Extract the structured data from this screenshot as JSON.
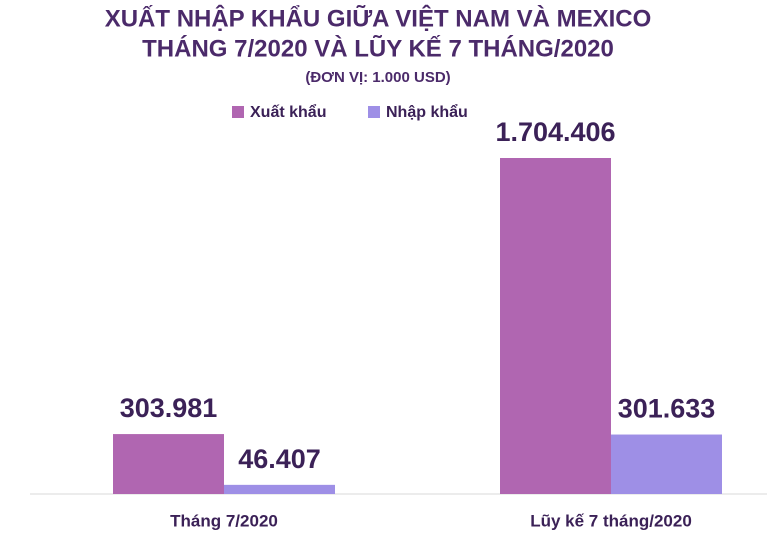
{
  "chart_data": {
    "type": "bar",
    "title": "XUẤT NHẬP KHẨU GIỮA VIỆT NAM VÀ MEXICO",
    "subtitle": "THÁNG 7/2020 VÀ LŨY KẾ 7 THÁNG/2020",
    "unit": "(ĐƠN VỊ: 1.000 USD)",
    "categories": [
      "Tháng 7/2020",
      "Lũy kế 7 tháng/2020"
    ],
    "series": [
      {
        "name": "Xuất khẩu",
        "color": "#b066b1",
        "values": [
          303981,
          1704406
        ],
        "value_labels": [
          "303.981",
          "1.704.406"
        ]
      },
      {
        "name": "Nhập khẩu",
        "color": "#9e8fe6",
        "values": [
          46407,
          301633
        ],
        "value_labels": [
          "46.407",
          "301.633"
        ]
      }
    ]
  }
}
